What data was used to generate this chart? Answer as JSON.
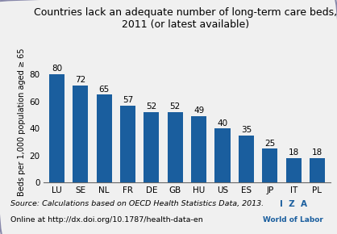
{
  "categories": [
    "LU",
    "SE",
    "NL",
    "FR",
    "DE",
    "GB",
    "HU",
    "US",
    "ES",
    "JP",
    "IT",
    "PL"
  ],
  "values": [
    80,
    72,
    65,
    57,
    52,
    52,
    49,
    40,
    35,
    25,
    18,
    18
  ],
  "bar_color": "#1a5e9e",
  "title_line1": "Countries lack an adequate number of long-term care beds,",
  "title_line2": "2011 (or latest available)",
  "ylabel": "Beds per 1,000 population aged ≥ 65",
  "ylim": [
    0,
    90
  ],
  "yticks": [
    0,
    20,
    40,
    60,
    80
  ],
  "source_line1": "Source: Calculations based on OECD Health Statistics Data, 2013.",
  "source_line2": "Online at http://dx.doi.org/10.1787/health-data-en",
  "iza_text": "I  Z  A",
  "wol_text": "World of Labor",
  "background_color": "#f0f0f0",
  "border_color": "#8888aa",
  "title_fontsize": 9.0,
  "label_fontsize": 7.5,
  "bar_value_fontsize": 7.5,
  "source_fontsize": 6.8,
  "ylabel_fontsize": 7.0
}
